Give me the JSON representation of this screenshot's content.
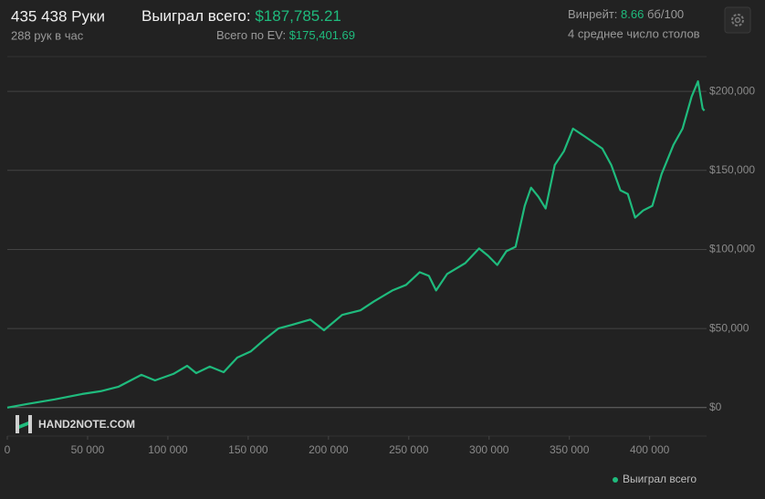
{
  "header": {
    "hands": "435 438 Руки",
    "hands_per_hour": "288 рук в час",
    "won_label": "Выиграл всего:",
    "won_value": "$187,785.21",
    "ev_label": "Всего по EV:",
    "ev_value": "$175,401.69",
    "winrate_label": "Винрейт:",
    "winrate_value": "8.66",
    "winrate_unit": "бб/100",
    "tables": "4 среднее число столов",
    "logo": "HAND2NOTE.COM"
  },
  "chart_data": {
    "type": "line",
    "x": [
      0,
      12500,
      29500,
      46600,
      58000,
      69300,
      83500,
      92000,
      103400,
      112000,
      117600,
      126100,
      134700,
      143200,
      151700,
      160200,
      168800,
      177300,
      188600,
      197200,
      208500,
      219900,
      228400,
      239800,
      248300,
      256800,
      262500,
      267000,
      273900,
      285200,
      293800,
      299400,
      305100,
      310800,
      316500,
      322200,
      326100,
      330700,
      335200,
      340900,
      346600,
      352300,
      359100,
      364800,
      370500,
      376100,
      381800,
      386400,
      390900,
      396000,
      401700,
      407400,
      414800,
      420500,
      426100,
      430100,
      433000,
      434100
    ],
    "series": [
      {
        "name": "Выиграл всего",
        "color": "#1fbb7d",
        "values": [
          0,
          2300,
          5200,
          8600,
          10300,
          13200,
          20700,
          17200,
          21300,
          26400,
          21800,
          25900,
          22400,
          31600,
          35600,
          43100,
          50000,
          52300,
          55700,
          48900,
          58600,
          61500,
          67200,
          74100,
          77600,
          85600,
          83300,
          74100,
          84500,
          91400,
          100600,
          96000,
          90200,
          98900,
          101700,
          127600,
          139100,
          133300,
          125900,
          153400,
          162100,
          176400,
          171800,
          167800,
          163800,
          153400,
          137400,
          135100,
          120100,
          124700,
          127600,
          147700,
          166100,
          176400,
          196600,
          206300,
          189100,
          187785.21
        ]
      }
    ],
    "xlim": [
      0,
      435438
    ],
    "ylim": [
      -18000,
      222000
    ],
    "xticks": [
      0,
      {
        "value": 50000,
        "label": "50 000"
      },
      {
        "value": 100000,
        "label": "100 000"
      },
      {
        "value": 150000,
        "label": "150 000"
      },
      {
        "value": 200000,
        "label": "200 000"
      },
      {
        "value": 250000,
        "label": "250 000"
      },
      {
        "value": 300000,
        "label": "300 000"
      },
      {
        "value": 350000,
        "label": "350 000"
      },
      {
        "value": 400000,
        "label": "400 000"
      }
    ],
    "yticks": [
      {
        "value": 0,
        "label": "$0"
      },
      {
        "value": 50000,
        "label": "$50,000"
      },
      {
        "value": 100000,
        "label": "$100,000"
      },
      {
        "value": 150000,
        "label": "$150,000"
      },
      {
        "value": 200000,
        "label": "$200,000"
      }
    ],
    "grid": true,
    "legend": "bottom-right"
  }
}
